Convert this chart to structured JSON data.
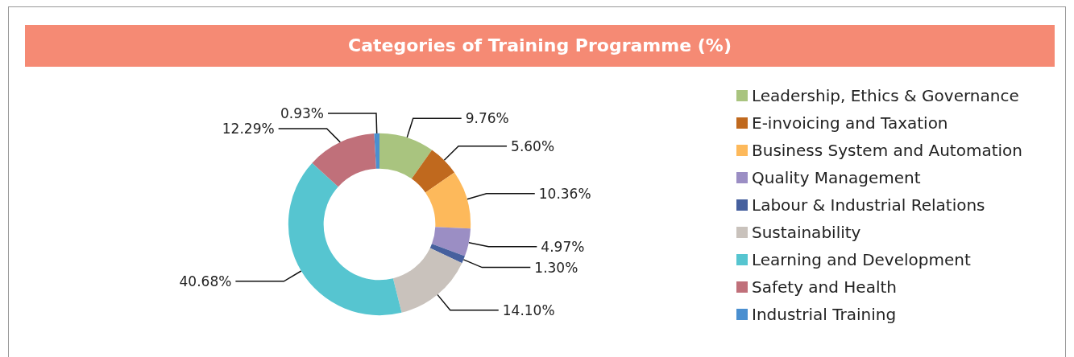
{
  "chart_data": {
    "type": "donut",
    "title": "Categories of Training Programme (%)",
    "categories": [
      "Leadership, Ethics & Governance",
      "E-invoicing and Taxation",
      "Business System and Automation",
      "Quality Management",
      "Labour & Industrial Relations",
      "Sustainability",
      "Learning and Development",
      "Safety and Health",
      "Industrial Training"
    ],
    "values": [
      9.76,
      5.6,
      10.36,
      4.97,
      1.3,
      14.1,
      40.68,
      12.29,
      0.93
    ],
    "value_labels": [
      "9.76%",
      "5.60%",
      "10.36%",
      "4.97%",
      "1.30%",
      "14.10%",
      "40.68%",
      "12.29%",
      "0.93%"
    ],
    "colors": [
      "#a9c47f",
      "#c0691e",
      "#fdb95b",
      "#9b8ec4",
      "#46609e",
      "#c9c2bc",
      "#56c5d0",
      "#c0707a",
      "#4a8fd0"
    ],
    "legend": "right"
  }
}
